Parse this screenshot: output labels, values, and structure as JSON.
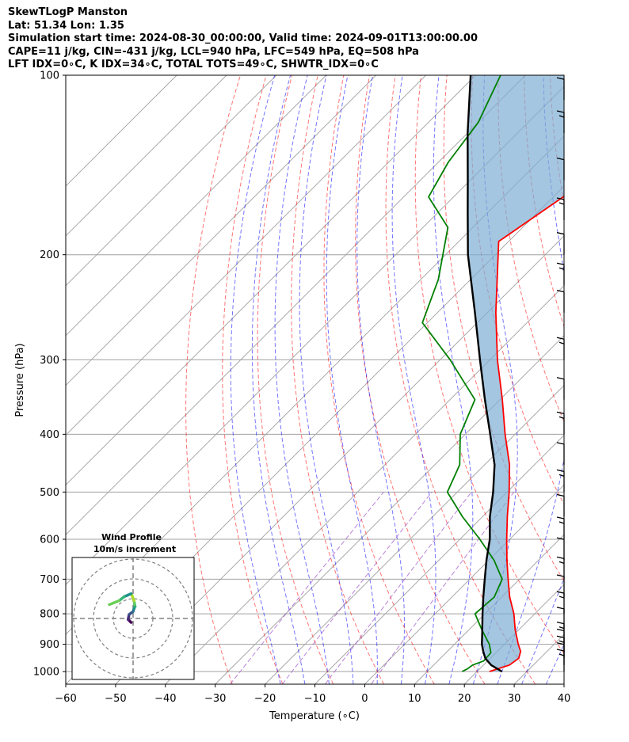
{
  "header": {
    "line1": "SkewTLogP Manston",
    "line2": "Lat: 51.34   Lon: 1.35",
    "line3": "Simulation start time: 2024-08-30_00:00:00, Valid time: 2024-09-01T13:00:00.00",
    "line4": "CAPE=11 j/kg, CIN=-431 j/kg, LCL=940 hPa, LFC=549 hPa, EQ=508 hPa",
    "line5": "LFT IDX=0∘C, K IDX=34∘C, TOTAL TOTS=49∘C, SHWTR_IDX=0∘C"
  },
  "inset": {
    "title": "Wind Profile",
    "subtitle": "10m/s increment"
  },
  "colors": {
    "temperature": "#ff0000",
    "dewpoint": "#008000",
    "parcel": "#000000",
    "cape_fill": "#7eaed3",
    "dry_adiabat": "#ff0000",
    "moist_adiabat": "#0000ff",
    "mixing_ratio": "#9c4fc7",
    "isotherm": "#a0a0a0"
  },
  "chart_data": {
    "type": "line",
    "title": "",
    "xlabel": "Temperature (∘C)",
    "ylabel": "Pressure (hPa)",
    "xlim": [
      -60,
      40
    ],
    "ylim": [
      1050,
      100
    ],
    "y_scale": "log",
    "x_ticks": [
      "−60",
      "−50",
      "−40",
      "−30",
      "−20",
      "−10",
      "0",
      "10",
      "20",
      "30",
      "40"
    ],
    "y_ticks": [
      "100",
      "200",
      "300",
      "400",
      "500",
      "600",
      "700",
      "800",
      "900",
      "1000"
    ],
    "grid": true,
    "series": [
      {
        "key": "temperature",
        "pressure": [
          1000,
          975,
          950,
          925,
          900,
          850,
          800,
          750,
          700,
          650,
          600,
          550,
          500,
          450,
          400,
          350,
          300,
          250,
          210,
          190,
          160,
          145,
          135,
          120,
          100
        ],
        "values": [
          22.5,
          25.2,
          25.7,
          24.7,
          22.8,
          19.2,
          15.8,
          11.6,
          7.7,
          3.6,
          -0.6,
          -5.0,
          -9.6,
          -15.0,
          -22.0,
          -29.5,
          -38.5,
          -48.3,
          -57.0,
          -62.0,
          -58.0,
          -56.0,
          -58.0,
          -60.5,
          -67.0
        ]
      },
      {
        "key": "dewpoint",
        "pressure": [
          1000,
          990,
          975,
          960,
          930,
          900,
          850,
          800,
          750,
          700,
          650,
          600,
          550,
          500,
          450,
          400,
          350,
          300,
          260,
          220,
          180,
          160,
          140,
          120,
          100
        ],
        "values": [
          17.0,
          17.5,
          17.8,
          19.2,
          19.0,
          17.0,
          12.5,
          8.0,
          8.5,
          6.5,
          1.0,
          -6.0,
          -14.0,
          -22.0,
          -25.0,
          -31.0,
          -35.0,
          -48.0,
          -61.0,
          -66.5,
          -75.0,
          -85.0,
          -88.0,
          -90.0,
          -95.0
        ]
      },
      {
        "key": "parcel",
        "pressure": [
          1000,
          975,
          950,
          925,
          900,
          850,
          800,
          750,
          700,
          650,
          600,
          550,
          500,
          450,
          400,
          350,
          300,
          250,
          200,
          170,
          150,
          125,
          100
        ],
        "values": [
          25.0,
          21.5,
          19.0,
          17.2,
          15.5,
          12.6,
          9.5,
          6.3,
          3.0,
          -0.5,
          -4.0,
          -8.5,
          -12.8,
          -18.0,
          -25.0,
          -33.0,
          -42.0,
          -52.5,
          -65.5,
          -74.0,
          -80.5,
          -90.0,
          -101.0
        ]
      }
    ],
    "wind_profile": {
      "increment": "10m/s",
      "u": [
        -1.0,
        -2.5,
        -2.0,
        0.0,
        0.5,
        1.0,
        0.8,
        0.5,
        -0.5,
        -1.0,
        -4.5,
        -7.0,
        -12.0
      ],
      "v": [
        -2.0,
        -0.5,
        2.0,
        3.5,
        5.0,
        6.0,
        7.0,
        9.0,
        11.5,
        12.5,
        11.0,
        9.0,
        7.0
      ]
    }
  }
}
